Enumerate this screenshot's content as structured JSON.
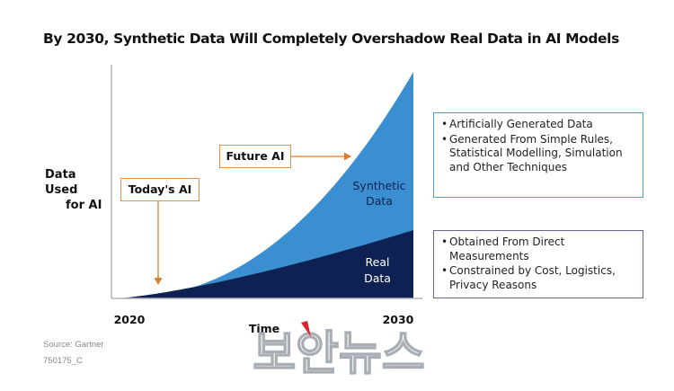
{
  "title": "By 2030,  Synthetic Data Will Completely Overshadow Real Data in AI Models",
  "chart_data": {
    "type": "area",
    "ylabel": [
      "Data Used",
      "for AI"
    ],
    "xlabel": "Time",
    "x_ticks": [
      "2020",
      "2030"
    ],
    "series": [
      {
        "name": "Real Data",
        "label_lines": [
          "Real",
          "Data"
        ],
        "color": "#0d2152",
        "trend": "gradually increasing"
      },
      {
        "name": "Synthetic Data",
        "label_lines": [
          "Synthetic",
          "Data"
        ],
        "color": "#3b8fd1",
        "trend": "exponentially increasing, stacked above real data"
      }
    ],
    "annotations": [
      {
        "label": "Today's AI",
        "arrow": "down",
        "points_to": "2020 start of curve"
      },
      {
        "label": "Future AI",
        "arrow": "right",
        "points_to": "Synthetic Data growth"
      }
    ],
    "grid": false
  },
  "info_synthetic": [
    "Artificially Generated Data",
    "Generated From Simple Rules, Statistical Modelling, Simulation and Other Techniques"
  ],
  "info_real": [
    "Obtained From Direct Measurements",
    "Constrained by Cost, Logistics, Privacy Reasons"
  ],
  "source": "Source: Gartner",
  "doc_id": "750175_C",
  "watermark": "보안뉴스",
  "colors": {
    "synthetic": "#3b8fd1",
    "real": "#0d2152",
    "callout_border": "#ea8f4a",
    "arrow": "#e07a2f",
    "synthetic_box": "#4aa3d8",
    "real_box": "#6a6490"
  }
}
